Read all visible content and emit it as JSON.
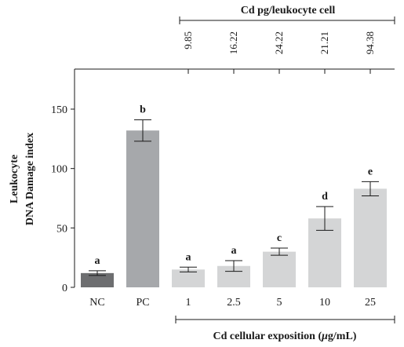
{
  "chart_data": {
    "type": "bar",
    "ylabel_line1": "Leukocyte",
    "ylabel_line2": "DNA Damage index",
    "xlabel_prefix": "Cd cellular exposition (",
    "xlabel_mu": "μ",
    "xlabel_suffix": "g/mL)",
    "ylim": [
      0,
      185
    ],
    "yticks": [
      0,
      50,
      100,
      150
    ],
    "categories": [
      "NC",
      "PC",
      "1",
      "2.5",
      "5",
      "10",
      "25"
    ],
    "values": [
      12,
      132,
      15,
      18,
      30,
      58,
      83
    ],
    "errors": [
      2,
      9,
      2,
      4.5,
      3,
      10,
      6
    ],
    "significance": [
      "a",
      "b",
      "a",
      "a",
      "c",
      "d",
      "e"
    ],
    "bar_colors": [
      "#6d6e70",
      "#a6a8ab",
      "#d4d5d6",
      "#d4d5d6",
      "#d4d5d6",
      "#d4d5d6",
      "#d4d5d6"
    ],
    "top_axis": {
      "title": "Cd pg/leukocyte cell",
      "values": [
        "9.85",
        "16.22",
        "24.22",
        "21.21",
        "94.38"
      ]
    },
    "grid": false
  }
}
